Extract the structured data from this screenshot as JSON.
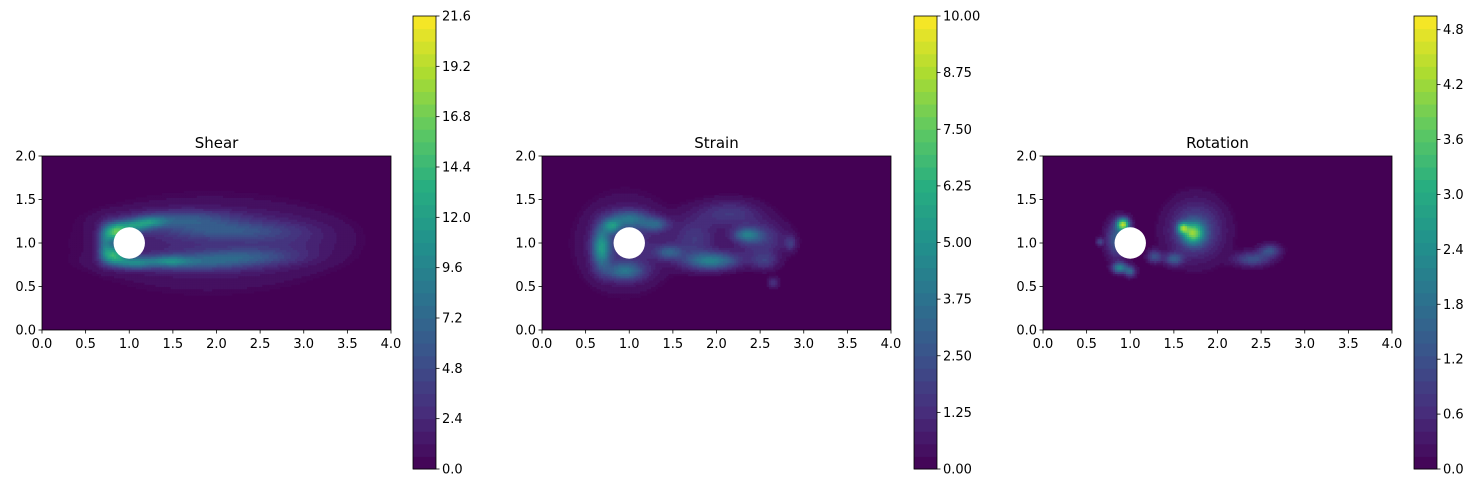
{
  "chart_data": [
    {
      "type": "heatmap",
      "title": "Shear",
      "xlim": [
        0,
        4
      ],
      "ylim": [
        0,
        2
      ],
      "xticks": [
        "0.0",
        "0.5",
        "1.0",
        "1.5",
        "2.0",
        "2.5",
        "3.0",
        "3.5",
        "4.0"
      ],
      "yticks": [
        "0.0",
        "0.5",
        "1.0",
        "1.5",
        "2.0"
      ],
      "obstacle": {
        "cx": 1.0,
        "cy": 1.0,
        "r": 0.18
      },
      "colorbar": {
        "min": 0.0,
        "max": 21.6,
        "ticks": [
          "0.0",
          "2.4",
          "4.8",
          "7.2",
          "9.6",
          "12.0",
          "14.4",
          "16.8",
          "19.2",
          "21.6"
        ]
      },
      "blobs": [
        {
          "x": 1.9,
          "y": 1.0,
          "rx": 1.2,
          "ry": 0.45,
          "v": 2.5
        },
        {
          "x": 2.8,
          "y": 1.05,
          "rx": 0.6,
          "ry": 0.25,
          "v": 1.5
        },
        {
          "x": 1.6,
          "y": 1.28,
          "rx": 0.6,
          "ry": 0.1,
          "v": 4.5
        },
        {
          "x": 1.7,
          "y": 0.78,
          "rx": 0.7,
          "ry": 0.09,
          "v": 4.5
        },
        {
          "x": 2.1,
          "y": 1.15,
          "rx": 0.7,
          "ry": 0.1,
          "v": 3.5
        },
        {
          "x": 2.3,
          "y": 0.85,
          "rx": 0.6,
          "ry": 0.09,
          "v": 3.5
        },
        {
          "x": 0.85,
          "y": 1.13,
          "rx": 0.13,
          "ry": 0.1,
          "v": 14
        },
        {
          "x": 0.83,
          "y": 0.87,
          "rx": 0.13,
          "ry": 0.1,
          "v": 12
        },
        {
          "x": 1.05,
          "y": 1.2,
          "rx": 0.18,
          "ry": 0.07,
          "v": 8
        },
        {
          "x": 1.05,
          "y": 0.78,
          "rx": 0.2,
          "ry": 0.07,
          "v": 7
        },
        {
          "x": 0.72,
          "y": 1.0,
          "rx": 0.08,
          "ry": 0.18,
          "v": 6
        },
        {
          "x": 1.25,
          "y": 1.25,
          "rx": 0.18,
          "ry": 0.06,
          "v": 6
        },
        {
          "x": 1.45,
          "y": 0.8,
          "rx": 0.22,
          "ry": 0.06,
          "v": 5
        }
      ]
    },
    {
      "type": "heatmap",
      "title": "Strain",
      "xlim": [
        0,
        4
      ],
      "ylim": [
        0,
        2
      ],
      "xticks": [
        "0.0",
        "0.5",
        "1.0",
        "1.5",
        "2.0",
        "2.5",
        "3.0",
        "3.5",
        "4.0"
      ],
      "yticks": [
        "0.0",
        "0.5",
        "1.0",
        "1.5",
        "2.0"
      ],
      "obstacle": {
        "cx": 1.0,
        "cy": 1.0,
        "r": 0.18
      },
      "colorbar": {
        "min": 0.0,
        "max": 10.0,
        "ticks": [
          "0.00",
          "1.25",
          "2.50",
          "3.75",
          "5.00",
          "6.25",
          "7.50",
          "8.75",
          "10.00"
        ]
      },
      "blobs": [
        {
          "x": 0.95,
          "y": 1.0,
          "rx": 0.45,
          "ry": 0.45,
          "v": 1.5
        },
        {
          "x": 0.68,
          "y": 0.95,
          "rx": 0.1,
          "ry": 0.22,
          "v": 4.5
        },
        {
          "x": 1.0,
          "y": 1.28,
          "rx": 0.22,
          "ry": 0.1,
          "v": 3
        },
        {
          "x": 0.95,
          "y": 0.68,
          "rx": 0.22,
          "ry": 0.1,
          "v": 3
        },
        {
          "x": 0.8,
          "y": 1.2,
          "rx": 0.1,
          "ry": 0.08,
          "v": 3.5
        },
        {
          "x": 1.3,
          "y": 1.22,
          "rx": 0.15,
          "ry": 0.08,
          "v": 2.5
        },
        {
          "x": 1.45,
          "y": 0.9,
          "rx": 0.15,
          "ry": 0.08,
          "v": 2.5
        },
        {
          "x": 1.95,
          "y": 0.8,
          "rx": 0.3,
          "ry": 0.1,
          "v": 4
        },
        {
          "x": 1.75,
          "y": 1.05,
          "rx": 0.25,
          "ry": 0.25,
          "v": 1.6
        },
        {
          "x": 2.15,
          "y": 1.35,
          "rx": 0.35,
          "ry": 0.15,
          "v": 1.6
        },
        {
          "x": 2.5,
          "y": 1.05,
          "rx": 0.3,
          "ry": 0.2,
          "v": 1.8
        },
        {
          "x": 2.35,
          "y": 1.1,
          "rx": 0.15,
          "ry": 0.08,
          "v": 3
        },
        {
          "x": 2.55,
          "y": 0.8,
          "rx": 0.15,
          "ry": 0.1,
          "v": 1.5
        },
        {
          "x": 2.85,
          "y": 1.0,
          "rx": 0.06,
          "ry": 0.08,
          "v": 1.5
        },
        {
          "x": 2.65,
          "y": 0.55,
          "rx": 0.06,
          "ry": 0.06,
          "v": 1.5
        }
      ]
    },
    {
      "type": "heatmap",
      "title": "Rotation",
      "xlim": [
        0,
        4
      ],
      "ylim": [
        0,
        2
      ],
      "xticks": [
        "0.0",
        "0.5",
        "1.0",
        "1.5",
        "2.0",
        "2.5",
        "3.0",
        "3.5",
        "4.0"
      ],
      "yticks": [
        "0.0",
        "0.5",
        "1.0",
        "1.5",
        "2.0"
      ],
      "obstacle": {
        "cx": 1.0,
        "cy": 1.0,
        "r": 0.18
      },
      "colorbar": {
        "min": 0.0,
        "max": 4.95,
        "ticks": [
          "0.0",
          "0.6",
          "1.2",
          "1.8",
          "2.4",
          "3.0",
          "3.6",
          "4.2",
          "4.8"
        ]
      },
      "blobs": [
        {
          "x": 0.92,
          "y": 1.22,
          "rx": 0.07,
          "ry": 0.07,
          "v": 4
        },
        {
          "x": 0.85,
          "y": 1.05,
          "rx": 0.12,
          "ry": 0.2,
          "v": 1.5
        },
        {
          "x": 0.88,
          "y": 0.72,
          "rx": 0.08,
          "ry": 0.06,
          "v": 2.2
        },
        {
          "x": 1.0,
          "y": 0.68,
          "rx": 0.06,
          "ry": 0.06,
          "v": 1.5
        },
        {
          "x": 0.65,
          "y": 1.02,
          "rx": 0.04,
          "ry": 0.04,
          "v": 1
        },
        {
          "x": 1.75,
          "y": 1.15,
          "rx": 0.3,
          "ry": 0.32,
          "v": 1.2
        },
        {
          "x": 1.72,
          "y": 1.12,
          "rx": 0.12,
          "ry": 0.12,
          "v": 3
        },
        {
          "x": 1.6,
          "y": 1.18,
          "rx": 0.06,
          "ry": 0.06,
          "v": 2.5
        },
        {
          "x": 1.5,
          "y": 0.82,
          "rx": 0.1,
          "ry": 0.07,
          "v": 1.3
        },
        {
          "x": 1.28,
          "y": 0.85,
          "rx": 0.08,
          "ry": 0.07,
          "v": 1.2
        },
        {
          "x": 2.4,
          "y": 0.82,
          "rx": 0.2,
          "ry": 0.08,
          "v": 1.2
        },
        {
          "x": 2.6,
          "y": 0.92,
          "rx": 0.12,
          "ry": 0.07,
          "v": 1.2
        }
      ]
    }
  ]
}
